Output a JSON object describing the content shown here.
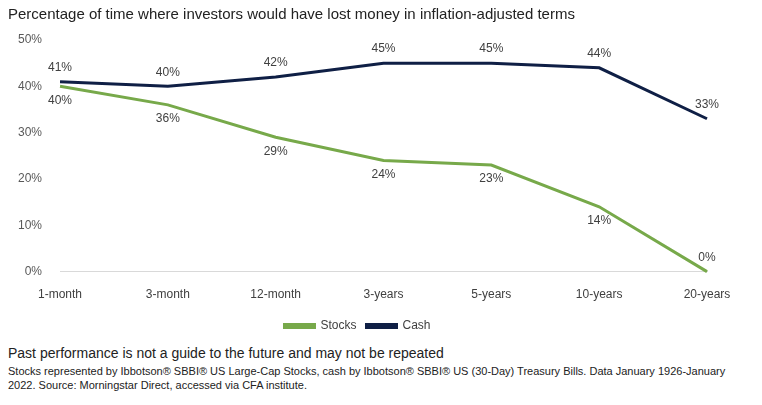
{
  "chart_data": {
    "type": "line",
    "title": "Percentage of time where investors would have lost money in inflation-adjusted terms",
    "categories": [
      "1-month",
      "3-month",
      "12-month",
      "3-years",
      "5-years",
      "10-years",
      "20-years"
    ],
    "series": [
      {
        "name": "Stocks",
        "color": "#77a94a",
        "values": [
          40,
          36,
          29,
          24,
          23,
          14,
          0
        ],
        "value_labels": [
          "40%",
          "36%",
          "29%",
          "24%",
          "23%",
          "14%",
          "0%"
        ]
      },
      {
        "name": "Cash",
        "color": "#0f1f45",
        "values": [
          41,
          40,
          42,
          45,
          45,
          44,
          33
        ],
        "value_labels": [
          "41%",
          "40%",
          "42%",
          "45%",
          "45%",
          "44%",
          "33%"
        ]
      }
    ],
    "ylim": [
      0,
      50
    ],
    "yticks": [
      {
        "value": 0,
        "label": "0%"
      },
      {
        "value": 10,
        "label": "10%"
      },
      {
        "value": 20,
        "label": "20%"
      },
      {
        "value": 30,
        "label": "30%"
      },
      {
        "value": 40,
        "label": "40%"
      },
      {
        "value": 50,
        "label": "50%"
      }
    ],
    "grid": false,
    "legend": "bottom",
    "data_labels": true,
    "annotations": [
      "Past performance is not a guide to the future and may not be repeated",
      "Stocks represented by Ibbotson® SBBI® US Large-Cap Stocks, cash by Ibbotson® SBBI® US (30-Day) Treasury Bills. Data January 1926-January 2022. Source: Morningstar Direct, accessed via CFA institute."
    ]
  }
}
